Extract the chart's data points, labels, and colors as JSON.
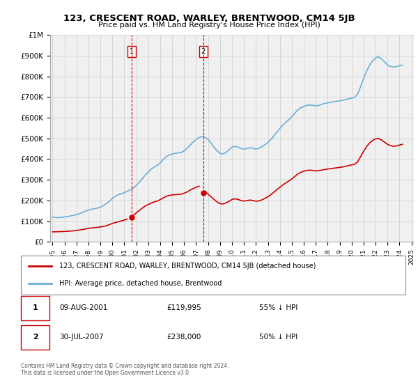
{
  "title": "123, CRESCENT ROAD, WARLEY, BRENTWOOD, CM14 5JB",
  "subtitle": "Price paid vs. HM Land Registry's House Price Index (HPI)",
  "ylabel": "",
  "ylim": [
    0,
    1000000
  ],
  "yticks": [
    0,
    100000,
    200000,
    300000,
    400000,
    500000,
    600000,
    700000,
    800000,
    900000,
    1000000
  ],
  "ytick_labels": [
    "£0",
    "£100K",
    "£200K",
    "£300K",
    "£400K",
    "£500K",
    "£600K",
    "£700K",
    "£800K",
    "£900K",
    "£1M"
  ],
  "hpi_color": "#6baed6",
  "property_color": "#cc0000",
  "annotation_color": "#cc0000",
  "background_color": "#ffffff",
  "grid_color": "#cccccc",
  "purchase1_year": 2001.6,
  "purchase1_label": "1",
  "purchase1_price": 119995,
  "purchase1_date": "09-AUG-2001",
  "purchase1_pct": "55% ↓ HPI",
  "purchase2_year": 2007.6,
  "purchase2_label": "2",
  "purchase2_price": 238000,
  "purchase2_date": "30-JUL-2007",
  "purchase2_pct": "50% ↓ HPI",
  "legend_property": "123, CRESCENT ROAD, WARLEY, BRENTWOOD, CM14 5JB (detached house)",
  "legend_hpi": "HPI: Average price, detached house, Brentwood",
  "footer": "Contains HM Land Registry data © Crown copyright and database right 2024.\nThis data is licensed under the Open Government Licence v3.0.",
  "hpi_data": {
    "years": [
      1995.0,
      1995.25,
      1995.5,
      1995.75,
      1996.0,
      1996.25,
      1996.5,
      1996.75,
      1997.0,
      1997.25,
      1997.5,
      1997.75,
      1998.0,
      1998.25,
      1998.5,
      1998.75,
      1999.0,
      1999.25,
      1999.5,
      1999.75,
      2000.0,
      2000.25,
      2000.5,
      2000.75,
      2001.0,
      2001.25,
      2001.5,
      2001.75,
      2002.0,
      2002.25,
      2002.5,
      2002.75,
      2003.0,
      2003.25,
      2003.5,
      2003.75,
      2004.0,
      2004.25,
      2004.5,
      2004.75,
      2005.0,
      2005.25,
      2005.5,
      2005.75,
      2006.0,
      2006.25,
      2006.5,
      2006.75,
      2007.0,
      2007.25,
      2007.5,
      2007.75,
      2008.0,
      2008.25,
      2008.5,
      2008.75,
      2009.0,
      2009.25,
      2009.5,
      2009.75,
      2010.0,
      2010.25,
      2010.5,
      2010.75,
      2011.0,
      2011.25,
      2011.5,
      2011.75,
      2012.0,
      2012.25,
      2012.5,
      2012.75,
      2013.0,
      2013.25,
      2013.5,
      2013.75,
      2014.0,
      2014.25,
      2014.5,
      2014.75,
      2015.0,
      2015.25,
      2015.5,
      2015.75,
      2016.0,
      2016.25,
      2016.5,
      2016.75,
      2017.0,
      2017.25,
      2017.5,
      2017.75,
      2018.0,
      2018.25,
      2018.5,
      2018.75,
      2019.0,
      2019.25,
      2019.5,
      2019.75,
      2020.0,
      2020.25,
      2020.5,
      2020.75,
      2021.0,
      2021.25,
      2021.5,
      2021.75,
      2022.0,
      2022.25,
      2022.5,
      2022.75,
      2023.0,
      2023.25,
      2023.5,
      2023.75,
      2024.0,
      2024.25
    ],
    "values": [
      120000,
      118000,
      117000,
      118000,
      120000,
      122000,
      125000,
      128000,
      132000,
      136000,
      142000,
      148000,
      153000,
      157000,
      160000,
      163000,
      168000,
      175000,
      185000,
      196000,
      210000,
      220000,
      228000,
      232000,
      238000,
      245000,
      252000,
      260000,
      272000,
      288000,
      305000,
      323000,
      338000,
      352000,
      362000,
      370000,
      382000,
      398000,
      412000,
      420000,
      425000,
      428000,
      430000,
      432000,
      440000,
      452000,
      468000,
      482000,
      495000,
      505000,
      510000,
      505000,
      495000,
      478000,
      458000,
      440000,
      428000,
      425000,
      432000,
      445000,
      458000,
      462000,
      458000,
      452000,
      448000,
      452000,
      455000,
      452000,
      448000,
      452000,
      460000,
      470000,
      480000,
      495000,
      512000,
      530000,
      548000,
      565000,
      578000,
      590000,
      605000,
      622000,
      638000,
      648000,
      655000,
      660000,
      662000,
      660000,
      658000,
      660000,
      665000,
      670000,
      672000,
      675000,
      678000,
      680000,
      682000,
      685000,
      688000,
      692000,
      695000,
      698000,
      715000,
      750000,
      790000,
      825000,
      855000,
      875000,
      890000,
      895000,
      885000,
      870000,
      855000,
      848000,
      845000,
      848000,
      852000,
      855000
    ]
  },
  "property_data": {
    "years": [
      1995.0,
      1995.25,
      1995.5,
      1995.75,
      1996.0,
      1996.25,
      1996.5,
      1996.75,
      1997.0,
      1997.25,
      1997.5,
      1997.75,
      1998.0,
      1998.25,
      1998.5,
      1998.75,
      1999.0,
      1999.25,
      1999.5,
      1999.75,
      2000.0,
      2000.25,
      2000.5,
      2000.75,
      2001.0,
      2001.25,
      2001.5,
      2001.75,
      2002.0,
      2002.25,
      2002.5,
      2002.75,
      2003.0,
      2003.25,
      2003.5,
      2003.75,
      2004.0,
      2004.25,
      2004.5,
      2004.75,
      2005.0,
      2005.25,
      2005.5,
      2005.75,
      2006.0,
      2006.25,
      2006.5,
      2006.75,
      2007.0,
      2007.25,
      2007.5,
      2007.75,
      2008.0,
      2008.25,
      2008.5,
      2008.75,
      2009.0,
      2009.25,
      2009.5,
      2009.75,
      2010.0,
      2010.25,
      2010.5,
      2010.75,
      2011.0,
      2011.25,
      2011.5,
      2011.75,
      2012.0,
      2012.25,
      2012.5,
      2012.75,
      2013.0,
      2013.25,
      2013.5,
      2013.75,
      2014.0,
      2014.25,
      2014.5,
      2014.75,
      2015.0,
      2015.25,
      2015.5,
      2015.75,
      2016.0,
      2016.25,
      2016.5,
      2016.75,
      2017.0,
      2017.25,
      2017.5,
      2017.75,
      2018.0,
      2018.25,
      2018.5,
      2018.75,
      2019.0,
      2019.25,
      2019.5,
      2019.75,
      2020.0,
      2020.25,
      2020.5,
      2020.75,
      2021.0,
      2021.25,
      2021.5,
      2021.75,
      2022.0,
      2022.25,
      2022.5,
      2022.75,
      2023.0,
      2023.25,
      2023.5,
      2023.75,
      2024.0,
      2024.25
    ],
    "values": [
      48000,
      48500,
      49000,
      49500,
      50200,
      51000,
      52000,
      53000,
      55000,
      57000,
      59500,
      62000,
      65000,
      67000,
      68500,
      70000,
      72000,
      74000,
      78000,
      83000,
      89000,
      93000,
      97000,
      101000,
      105000,
      110000,
      null,
      128000,
      140000,
      152000,
      163000,
      173000,
      180000,
      187000,
      193000,
      197000,
      204000,
      212000,
      220000,
      224000,
      227000,
      228000,
      229000,
      230000,
      235000,
      241000,
      250000,
      257000,
      264000,
      269000,
      null,
      245000,
      230000,
      218000,
      205000,
      193000,
      185000,
      183000,
      188000,
      196000,
      205000,
      208000,
      205000,
      200000,
      197000,
      199000,
      202000,
      200000,
      196000,
      198000,
      203000,
      210000,
      218000,
      228000,
      240000,
      252000,
      264000,
      275000,
      285000,
      294000,
      304000,
      316000,
      328000,
      336000,
      342000,
      345000,
      347000,
      345000,
      343000,
      344000,
      347000,
      350000,
      352000,
      354000,
      356000,
      358000,
      360000,
      362000,
      365000,
      369000,
      372000,
      375000,
      387000,
      412000,
      438000,
      460000,
      478000,
      490000,
      498000,
      500000,
      493000,
      482000,
      472000,
      465000,
      462000,
      464000,
      468000,
      472000
    ]
  },
  "xtick_years": [
    1995,
    1996,
    1997,
    1998,
    1999,
    2000,
    2001,
    2002,
    2003,
    2004,
    2005,
    2006,
    2007,
    2008,
    2009,
    2010,
    2011,
    2012,
    2013,
    2014,
    2015,
    2016,
    2017,
    2018,
    2019,
    2020,
    2021,
    2022,
    2023,
    2024,
    2025
  ]
}
